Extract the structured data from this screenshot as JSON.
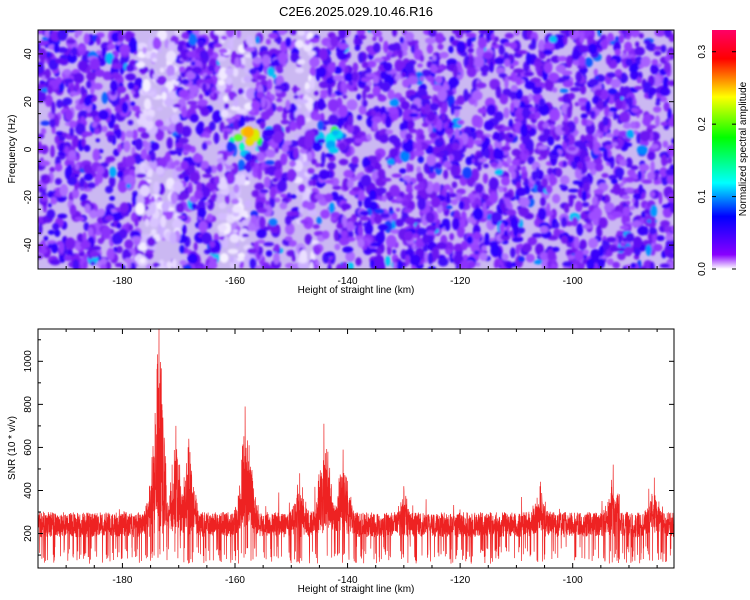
{
  "title": "C2E6.2025.029.10.46.R16",
  "chart_data": [
    {
      "type": "heatmap",
      "xlabel": "Height of straight line (km)",
      "ylabel": "Frequency (Hz)",
      "xlim": [
        -195,
        -82
      ],
      "ylim": [
        -50,
        50
      ],
      "x_ticks": [
        -180,
        -160,
        -140,
        -120,
        -100
      ],
      "y_ticks": [
        -40,
        -20,
        0,
        20,
        40
      ],
      "grid": false,
      "colorbar": {
        "label": "Normalized spectral amplitude",
        "range": [
          0.0,
          0.33
        ],
        "ticks": [
          "0.0",
          "0.1",
          "0.2",
          "0.3"
        ],
        "tick_values": [
          0.0,
          0.1,
          0.2,
          0.3
        ],
        "colormap": [
          "#ffffff",
          "#8800ff",
          "#0000ff",
          "#00ffff",
          "#00ff00",
          "#ffff00",
          "#ff0000",
          "#ff0066"
        ]
      },
      "background_level": 0.04,
      "gaps_x": [
        [
          -177,
          -170
        ],
        [
          -163,
          -157
        ],
        [
          -149,
          -146
        ]
      ],
      "hotspots": [
        {
          "x": -185,
          "y": 2,
          "value": 0.12
        },
        {
          "x": -173,
          "y": 0,
          "value": 0.14
        },
        {
          "x": -170,
          "y": 5,
          "value": 0.12
        },
        {
          "x": -159,
          "y": -3,
          "value": 0.14
        },
        {
          "x": -158,
          "y": 5,
          "value": 0.3
        },
        {
          "x": -154,
          "y": 8,
          "value": 0.1
        },
        {
          "x": -145,
          "y": 3,
          "value": 0.13
        },
        {
          "x": -143,
          "y": 6,
          "value": 0.2
        },
        {
          "x": -140,
          "y": 10,
          "value": 0.11
        }
      ]
    },
    {
      "type": "line",
      "xlabel": "Height of straight line (km)",
      "ylabel": "SNR (10 * v/v)",
      "xlim": [
        -195,
        -82
      ],
      "ylim": [
        40,
        1150
      ],
      "x_ticks": [
        -180,
        -160,
        -140,
        -120,
        -100
      ],
      "y_ticks": [
        200,
        400,
        600,
        800,
        1000
      ],
      "color": "#ee2222",
      "grid": false,
      "baseline_band": [
        120,
        300
      ],
      "peaks": [
        {
          "x": -173.5,
          "y": 1150
        },
        {
          "x": -174.2,
          "y": 760
        },
        {
          "x": -170.5,
          "y": 700
        },
        {
          "x": -168.2,
          "y": 640
        },
        {
          "x": -158.2,
          "y": 790
        },
        {
          "x": -157.5,
          "y": 610
        },
        {
          "x": -148.5,
          "y": 480
        },
        {
          "x": -144.2,
          "y": 710
        },
        {
          "x": -143.5,
          "y": 580
        },
        {
          "x": -140.8,
          "y": 590
        },
        {
          "x": -130,
          "y": 420
        },
        {
          "x": -105.8,
          "y": 420
        },
        {
          "x": -92.8,
          "y": 520
        },
        {
          "x": -85.5,
          "y": 460
        }
      ]
    }
  ]
}
